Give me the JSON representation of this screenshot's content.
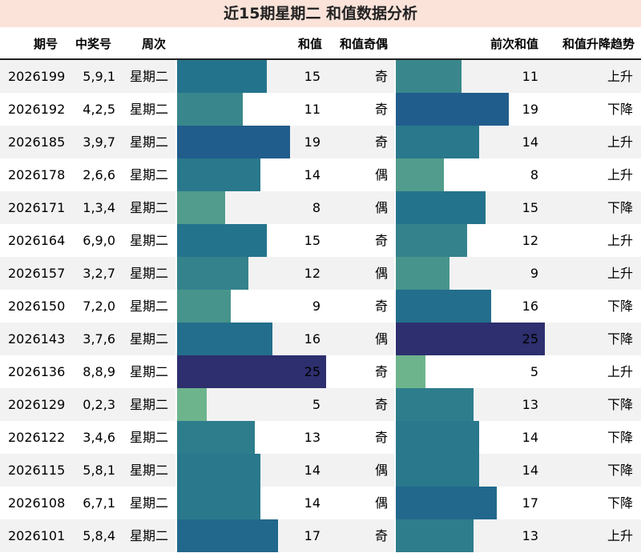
{
  "title": "近15期星期二 和值数据分析",
  "headers": {
    "issue": "期号",
    "numbers": "中奖号",
    "weekday": "周次",
    "sum": "和值",
    "parity": "和值奇偶",
    "prev_sum": "前次和值",
    "trend": "和值升降趋势"
  },
  "sum_scale_max": 25,
  "colors": {
    "title_bg": "#fbe3d9",
    "row_odd": "#f2f2f2",
    "row_even": "#ffffff",
    "bar_low": "#6db48d",
    "bar_high": "#2d2f6e"
  },
  "rows": [
    {
      "issue": "2026199",
      "numbers": "5,9,1",
      "weekday": "星期二",
      "sum": 15,
      "parity": "奇",
      "prev_sum": 11,
      "trend": "上升"
    },
    {
      "issue": "2026192",
      "numbers": "4,2,5",
      "weekday": "星期二",
      "sum": 11,
      "parity": "奇",
      "prev_sum": 19,
      "trend": "下降"
    },
    {
      "issue": "2026185",
      "numbers": "3,9,7",
      "weekday": "星期二",
      "sum": 19,
      "parity": "奇",
      "prev_sum": 14,
      "trend": "上升"
    },
    {
      "issue": "2026178",
      "numbers": "2,6,6",
      "weekday": "星期二",
      "sum": 14,
      "parity": "偶",
      "prev_sum": 8,
      "trend": "上升"
    },
    {
      "issue": "2026171",
      "numbers": "1,3,4",
      "weekday": "星期二",
      "sum": 8,
      "parity": "偶",
      "prev_sum": 15,
      "trend": "下降"
    },
    {
      "issue": "2026164",
      "numbers": "6,9,0",
      "weekday": "星期二",
      "sum": 15,
      "parity": "奇",
      "prev_sum": 12,
      "trend": "上升"
    },
    {
      "issue": "2026157",
      "numbers": "3,2,7",
      "weekday": "星期二",
      "sum": 12,
      "parity": "偶",
      "prev_sum": 9,
      "trend": "上升"
    },
    {
      "issue": "2026150",
      "numbers": "7,2,0",
      "weekday": "星期二",
      "sum": 9,
      "parity": "奇",
      "prev_sum": 16,
      "trend": "下降"
    },
    {
      "issue": "2026143",
      "numbers": "3,7,6",
      "weekday": "星期二",
      "sum": 16,
      "parity": "偶",
      "prev_sum": 25,
      "trend": "下降"
    },
    {
      "issue": "2026136",
      "numbers": "8,8,9",
      "weekday": "星期二",
      "sum": 25,
      "parity": "奇",
      "prev_sum": 5,
      "trend": "上升"
    },
    {
      "issue": "2026129",
      "numbers": "0,2,3",
      "weekday": "星期二",
      "sum": 5,
      "parity": "奇",
      "prev_sum": 13,
      "trend": "下降"
    },
    {
      "issue": "2026122",
      "numbers": "3,4,6",
      "weekday": "星期二",
      "sum": 13,
      "parity": "奇",
      "prev_sum": 14,
      "trend": "下降"
    },
    {
      "issue": "2026115",
      "numbers": "5,8,1",
      "weekday": "星期二",
      "sum": 14,
      "parity": "偶",
      "prev_sum": 14,
      "trend": "下降"
    },
    {
      "issue": "2026108",
      "numbers": "6,7,1",
      "weekday": "星期二",
      "sum": 14,
      "parity": "偶",
      "prev_sum": 17,
      "trend": "下降"
    },
    {
      "issue": "2026101",
      "numbers": "5,8,4",
      "weekday": "星期二",
      "sum": 17,
      "parity": "奇",
      "prev_sum": 13,
      "trend": "上升"
    }
  ]
}
